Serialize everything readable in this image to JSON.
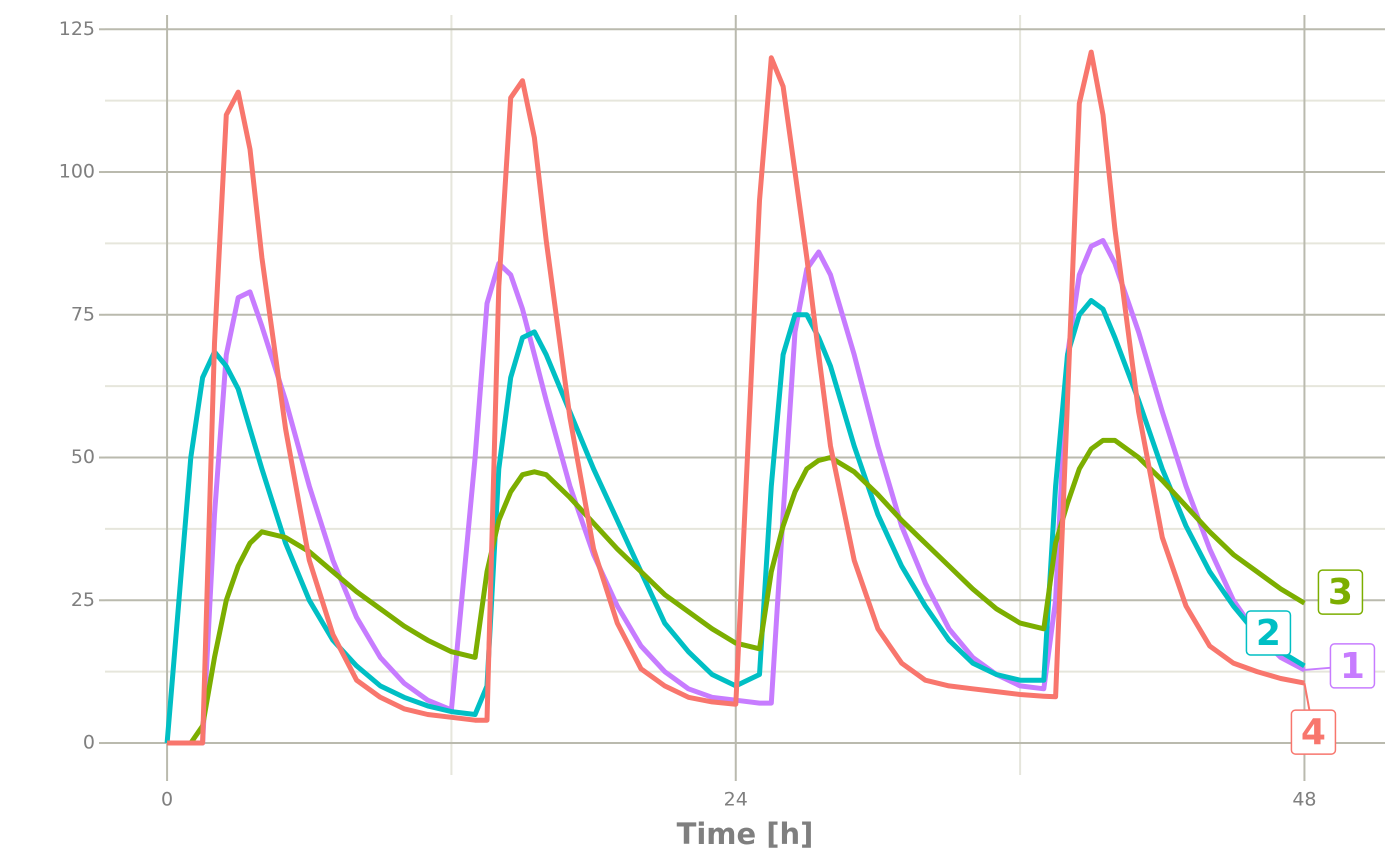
{
  "chart_data": {
    "type": "line",
    "x_label": "Time [h]",
    "x": [
      0,
      1,
      1.5,
      2,
      2.5,
      3,
      3.5,
      4,
      5,
      6,
      7,
      8,
      9,
      10,
      11,
      12,
      13,
      13.5,
      14,
      14.5,
      15,
      15.5,
      16,
      17,
      18,
      19,
      20,
      21,
      22,
      23,
      24,
      25,
      25.5,
      26,
      26.5,
      27,
      27.5,
      28,
      29,
      30,
      31,
      32,
      33,
      34,
      35,
      36,
      37,
      37.5,
      38,
      38.5,
      39,
      39.5,
      40,
      41,
      42,
      43,
      44,
      45,
      46,
      47,
      48
    ],
    "series": [
      {
        "name": "1",
        "color": "#c77cff",
        "values": [
          0,
          0,
          0,
          40,
          68,
          78,
          79,
          73,
          60,
          45,
          32,
          22,
          15,
          10.5,
          7.5,
          5.8,
          50,
          77,
          84,
          82,
          76,
          68,
          60,
          45,
          33,
          24,
          17,
          12.5,
          9.5,
          8,
          7.5,
          7,
          7,
          40,
          72,
          83,
          86,
          82,
          68,
          52,
          38,
          28,
          20,
          15,
          12,
          10,
          9.5,
          25,
          68,
          82,
          87,
          88,
          84,
          72,
          58,
          45,
          34,
          25,
          19,
          15,
          12.8
        ]
      },
      {
        "name": "2",
        "color": "#00bfc4",
        "values": [
          0,
          50,
          64,
          68.5,
          66,
          62,
          55,
          48,
          35,
          25,
          18,
          13.5,
          10,
          8,
          6.5,
          5.5,
          5,
          10,
          48,
          64,
          71,
          72,
          68,
          58,
          48,
          39,
          30,
          21,
          16,
          12,
          10,
          12,
          45,
          68,
          75,
          75,
          71,
          66,
          52,
          40,
          31,
          24,
          18,
          14,
          12,
          11,
          11,
          45,
          68,
          75,
          77.5,
          76,
          71,
          60,
          48,
          38,
          30,
          24,
          19,
          16,
          13.5
        ]
      },
      {
        "name": "3",
        "color": "#7cae00",
        "values": [
          0,
          0,
          3,
          15,
          25,
          31,
          35,
          37,
          36,
          33.5,
          30,
          26.5,
          23.5,
          20.5,
          18,
          16,
          15,
          30,
          39,
          44,
          47,
          47.5,
          47,
          43,
          38.5,
          34,
          30,
          26,
          23,
          20,
          17.5,
          16.5,
          30,
          38,
          44,
          48,
          49.5,
          50,
          47.5,
          43.5,
          39,
          35,
          31,
          27,
          23.5,
          21,
          20,
          35,
          42,
          48,
          51.5,
          53,
          53,
          50,
          46,
          41.5,
          37,
          33,
          30,
          27,
          24.5
        ]
      },
      {
        "name": "4",
        "color": "#f8766d",
        "values": [
          0,
          0,
          0,
          70,
          110,
          114,
          104,
          85,
          55,
          32,
          19,
          11,
          8,
          6,
          5,
          4.5,
          4,
          4,
          80,
          113,
          116,
          106,
          88,
          57,
          34,
          21,
          13,
          10,
          8,
          7.2,
          6.8,
          95,
          120,
          115,
          100,
          85,
          68,
          52,
          32,
          20,
          14,
          11,
          10,
          9.5,
          9,
          8.5,
          8.2,
          8.1,
          60,
          112,
          121,
          110,
          90,
          58,
          36,
          24,
          17,
          14,
          12.5,
          11.3,
          10.5
        ]
      }
    ],
    "xlim": [
      -2.62,
      51.4
    ],
    "ylim": [
      -5.6,
      127.5
    ],
    "xticks": [
      0,
      24,
      48
    ],
    "yticks": [
      0,
      25,
      50,
      75,
      100,
      125
    ],
    "grid": true
  }
}
